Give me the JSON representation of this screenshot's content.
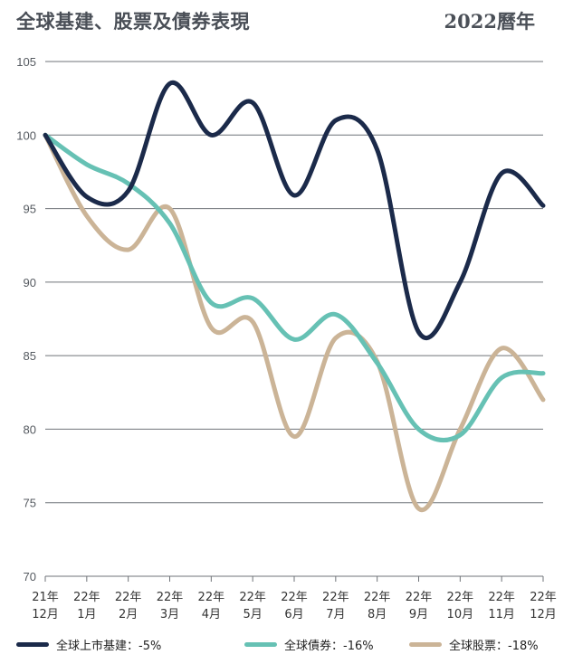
{
  "chart_data": {
    "type": "line",
    "title": "全球基建、股票及債券表現",
    "period_label": "2022曆年",
    "ylim": [
      70,
      105
    ],
    "yticks": [
      105,
      100,
      95,
      90,
      85,
      80,
      75,
      70
    ],
    "categories": [
      [
        "21年",
        "12月"
      ],
      [
        "22年",
        "1月"
      ],
      [
        "22年",
        "2月"
      ],
      [
        "22年",
        "3月"
      ],
      [
        "22年",
        "4月"
      ],
      [
        "22年",
        "5月"
      ],
      [
        "22年",
        "6月"
      ],
      [
        "22年",
        "7月"
      ],
      [
        "22年",
        "8月"
      ],
      [
        "22年",
        "9月"
      ],
      [
        "22年",
        "10月"
      ],
      [
        "22年",
        "11月"
      ],
      [
        "22年",
        "12月"
      ]
    ],
    "series": [
      {
        "name": "全球上市基建",
        "legend_label": "全球上市基建：-5%",
        "color": "#1b2a4a",
        "values": [
          100,
          95.8,
          96.2,
          103.5,
          100,
          102.2,
          95.9,
          101,
          99,
          86.6,
          90,
          97.4,
          95.2
        ]
      },
      {
        "name": "全球債券",
        "legend_label": "全球債券：-16%",
        "color": "#66c1b4",
        "values": [
          100,
          98,
          96.7,
          94,
          88.6,
          88.9,
          86.1,
          87.8,
          84.5,
          80,
          79.6,
          83.5,
          83.8
        ]
      },
      {
        "name": "全球股票",
        "legend_label": "全球股票：-18%",
        "color": "#cbb497",
        "values": [
          100,
          94.5,
          92.2,
          95,
          86.9,
          87.3,
          79.5,
          86.2,
          84.6,
          74.6,
          80,
          85.5,
          82
        ]
      }
    ]
  }
}
